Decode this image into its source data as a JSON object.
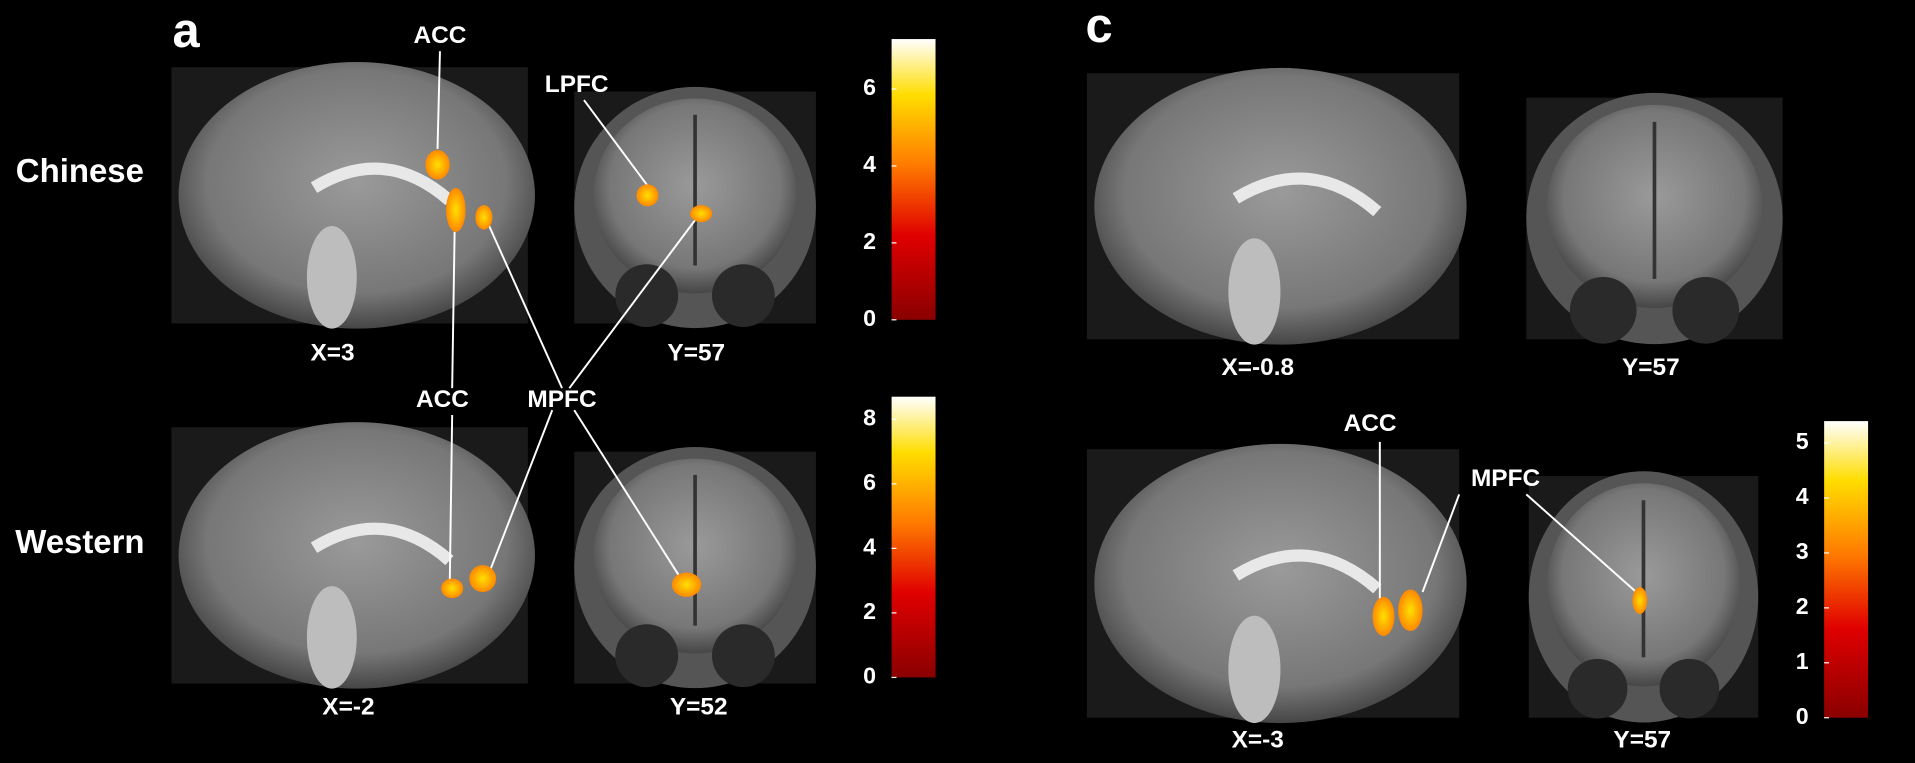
{
  "panel_labels": [
    "a",
    "c"
  ],
  "row_labels": [
    "Chinese",
    "Western"
  ],
  "slice_labels": [
    "X=3",
    "Y=57",
    "X=-2",
    "Y=52",
    "X=-0.8",
    "Y=57",
    "X=-3",
    "Y=57"
  ],
  "region_labels": [
    "ACC",
    "LPFC",
    "MPFC",
    "ACC",
    "ACC",
    "MPFC"
  ],
  "colorbars": [
    {
      "lim": [
        0,
        7.3
      ],
      "ticks": [
        0,
        2,
        4,
        6
      ]
    },
    {
      "lim": [
        0,
        8.7
      ],
      "ticks": [
        0,
        2,
        4,
        6,
        8
      ]
    },
    {
      "lim": [
        0,
        5.4
      ],
      "ticks": [
        0,
        1,
        2,
        3,
        4,
        5
      ]
    }
  ]
}
